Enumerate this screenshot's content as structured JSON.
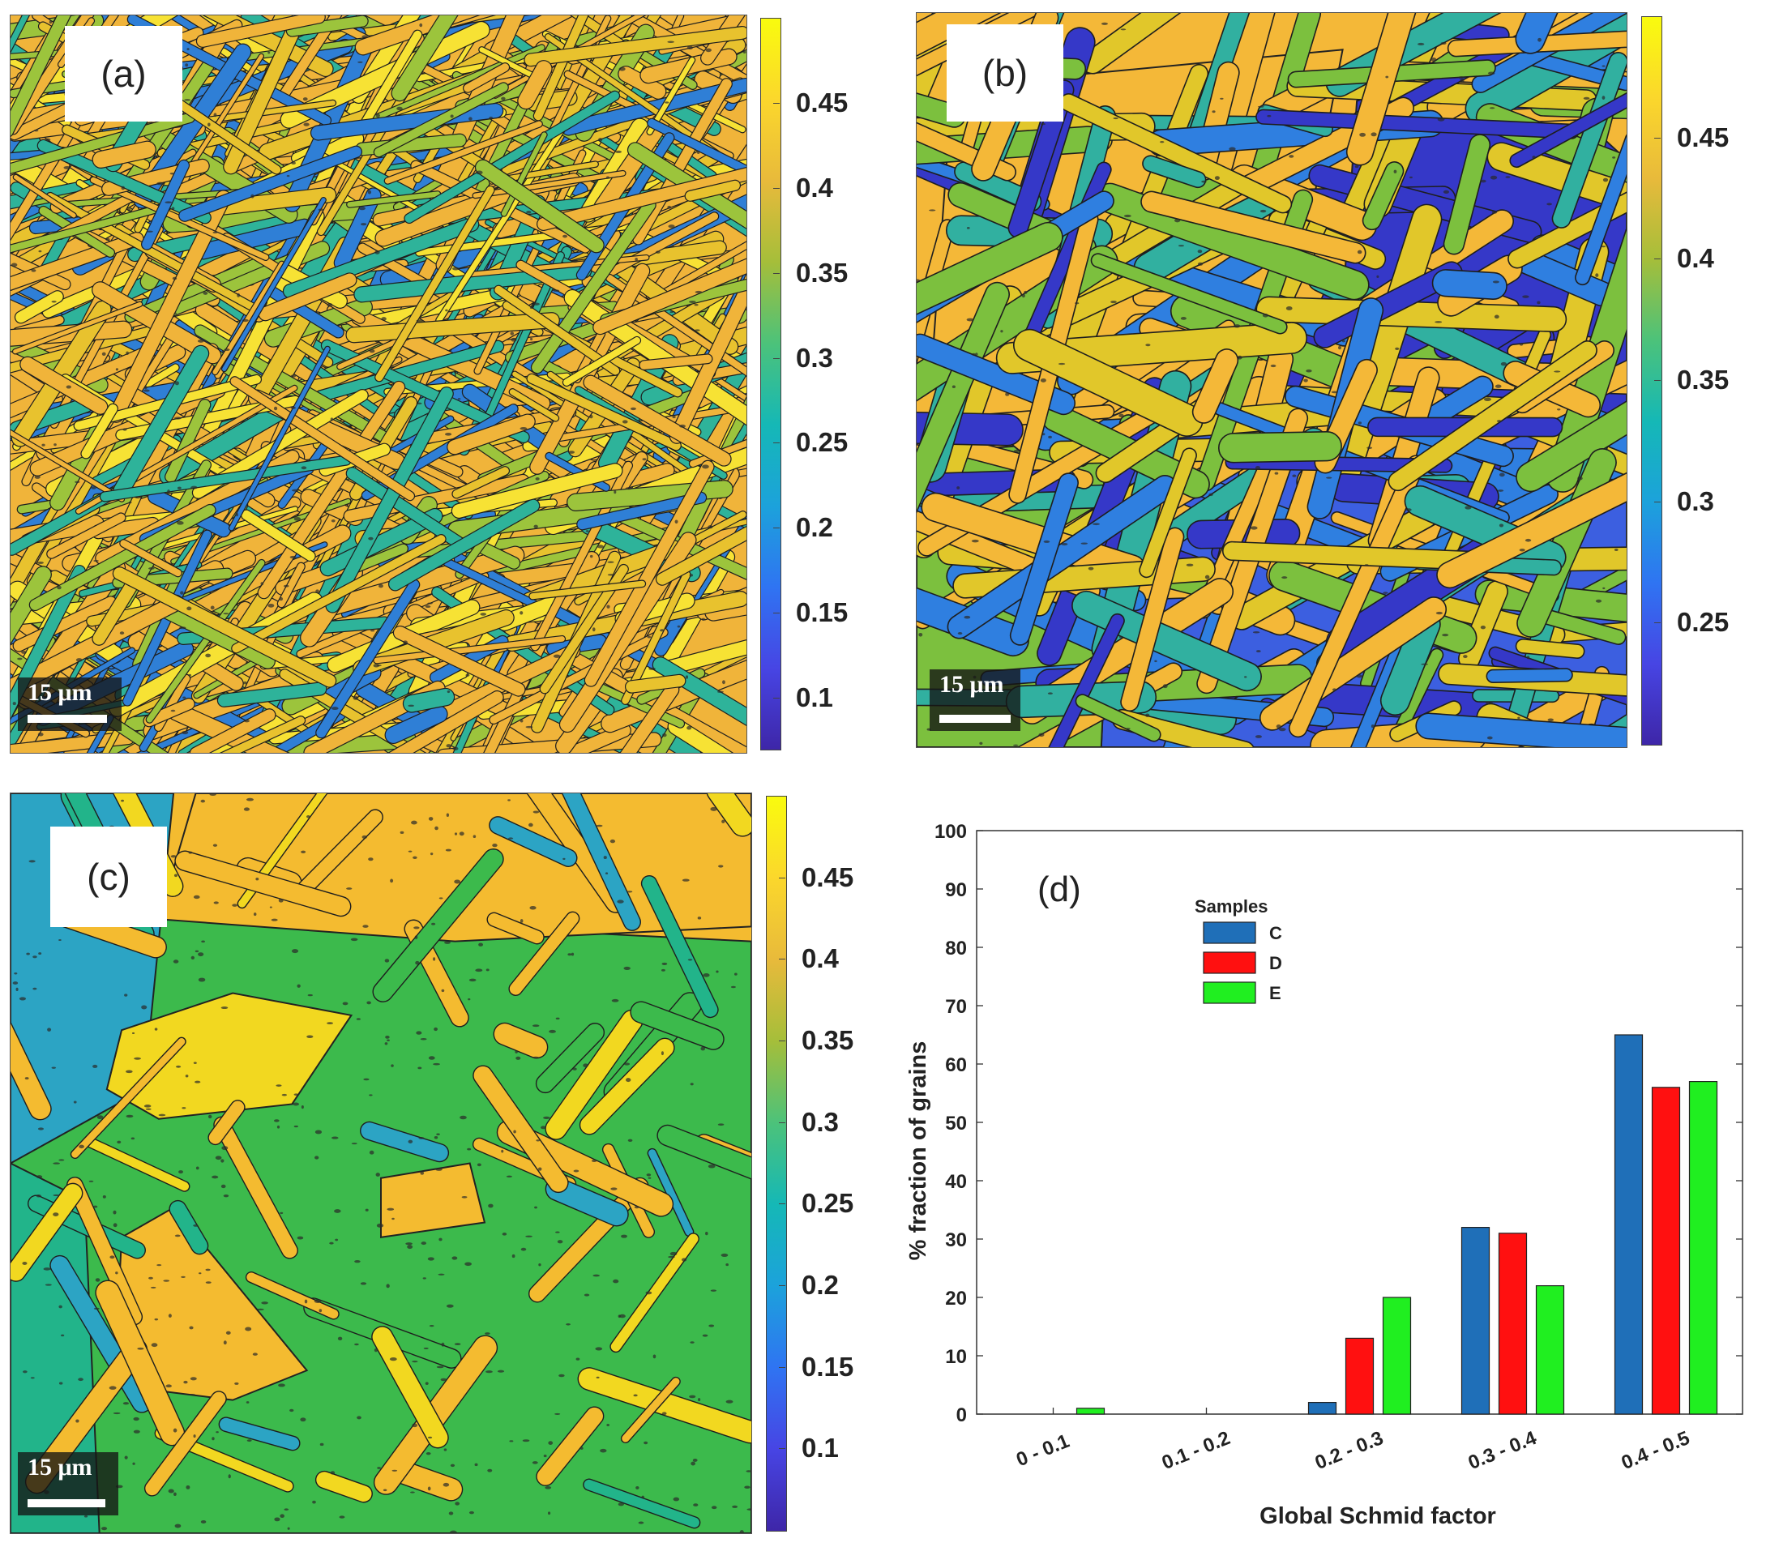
{
  "panels": {
    "a": {
      "label": "(a)",
      "scale_bar": "15 μm",
      "colorbar_ticks": [
        "0.45",
        "0.4",
        "0.35",
        "0.3",
        "0.25",
        "0.2",
        "0.15",
        "0.1"
      ],
      "colorbar_values": [
        0.45,
        0.4,
        0.35,
        0.3,
        0.25,
        0.2,
        0.15,
        0.1
      ],
      "colorbar_range": [
        0.07,
        0.5
      ],
      "dominant_colors": [
        "#f0b43a",
        "#e8c22e",
        "#9cc43c",
        "#2eb39a",
        "#f7e234",
        "#2f7fd6"
      ]
    },
    "b": {
      "label": "(b)",
      "scale_bar": "15 μm",
      "colorbar_ticks": [
        "0.45",
        "0.4",
        "0.35",
        "0.3",
        "0.25"
      ],
      "colorbar_values": [
        0.45,
        0.4,
        0.35,
        0.3,
        0.25
      ],
      "colorbar_range": [
        0.2,
        0.5
      ],
      "dominant_colors": [
        "#f4b838",
        "#e1c72a",
        "#7cc03e",
        "#31b0a0",
        "#2f7fe0",
        "#3538c8"
      ]
    },
    "c": {
      "label": "(c)",
      "scale_bar": "15 μm",
      "colorbar_ticks": [
        "0.45",
        "0.4",
        "0.35",
        "0.3",
        "0.25",
        "0.2",
        "0.15",
        "0.1"
      ],
      "colorbar_values": [
        0.45,
        0.4,
        0.35,
        0.3,
        0.25,
        0.2,
        0.15,
        0.1
      ],
      "colorbar_range": [
        0.05,
        0.5
      ],
      "dominant_colors": [
        "#f4bb30",
        "#f2d820",
        "#3cba4c",
        "#22b48a",
        "#2ca4c4"
      ]
    }
  },
  "colormap": [
    "#3e26a8",
    "#4745e4",
    "#2f74f2",
    "#1ca2db",
    "#15b8b6",
    "#4cc27a",
    "#a5be3a",
    "#e8ba3b",
    "#fbd72c",
    "#f9fb0e"
  ],
  "chart_data": {
    "type": "bar",
    "panel_label": "(d)",
    "categories": [
      "0 - 0.1",
      "0.1 - 0.2",
      "0.2 - 0.3",
      "0.3 - 0.4",
      "0.4 - 0.5"
    ],
    "series": [
      {
        "name": "C",
        "color": "#1f6fb8",
        "values": [
          0,
          0,
          2,
          32,
          65
        ]
      },
      {
        "name": "D",
        "color": "#ff1010",
        "values": [
          0,
          0,
          13,
          31,
          56
        ]
      },
      {
        "name": "E",
        "color": "#20ef20",
        "values": [
          1,
          0,
          20,
          22,
          57
        ]
      }
    ],
    "xlabel": "Global Schmid factor",
    "ylabel": "% fraction of grains",
    "ylim": [
      0,
      100
    ],
    "yticks": [
      0,
      10,
      20,
      30,
      40,
      50,
      60,
      70,
      80,
      90,
      100
    ],
    "legend_title": "Samples",
    "legend_position": "top-left",
    "grid": false
  }
}
